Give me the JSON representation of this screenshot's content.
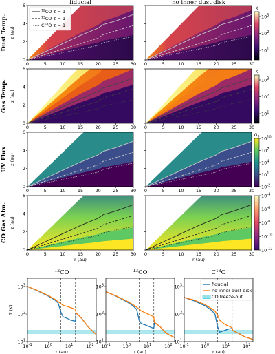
{
  "colors": {
    "fiducial": "#1f77b4",
    "no_inner_dust_disk": "#ff7f0e",
    "freezeout": "#17becf",
    "vline": "#555555"
  },
  "chart_data": [
    {
      "type": "heatmap",
      "grid": "4x2",
      "column_titles": [
        "fiducial",
        "no inner dust disk"
      ],
      "row_titles": [
        "Dust Temp.",
        "Gas Temp.",
        "UV Flux",
        "CO Gas Abu."
      ],
      "colorbar_labels": [
        "K",
        "K",
        "G0",
        ""
      ],
      "colorbar_ticks": [
        [
          "10^1",
          "10^2",
          "10^3"
        ],
        [
          "10^1",
          "10^2",
          "10^3"
        ],
        [
          "10^10",
          "10^7",
          "10^4",
          "10^1",
          "10^-2"
        ],
        [
          "10^-4",
          "10^-6",
          "10^-8",
          "10^-10",
          "10^-12"
        ]
      ],
      "xlabel": "r (au)",
      "ylabel": "z (au)",
      "xlim": [
        0,
        30
      ],
      "ylim": [
        0,
        6
      ],
      "xticks": [
        0,
        5,
        10,
        15,
        20,
        25,
        30
      ],
      "yticks": [
        0,
        2,
        4,
        6
      ],
      "legend": {
        "placement": "top-left",
        "entries": [
          "12CO τ = 1",
          "13CO τ = 1",
          "C18O τ = 1"
        ]
      },
      "tau_surfaces": {
        "r": [
          0,
          5,
          10,
          15,
          20,
          21.5,
          25,
          30
        ],
        "12CO": [
          0,
          0.9,
          1.8,
          2.7,
          3.5,
          3.9,
          4.3,
          5.0
        ],
        "13CO": [
          0,
          0.6,
          1.2,
          1.8,
          2.4,
          2.8,
          3.2,
          3.8
        ],
        "C18O": [
          0,
          0.4,
          0.8,
          1.2,
          1.6,
          1.9,
          2.2,
          2.6
        ]
      }
    },
    {
      "type": "line",
      "panels": [
        "12CO",
        "13CO",
        "C18O"
      ],
      "xlabel": "r (au)",
      "ylabel": "T (K)",
      "xscale": "log",
      "yscale": "log",
      "xlim": [
        0.1,
        200
      ],
      "ylim": [
        10,
        2000
      ],
      "xticks": [
        "10^-1",
        "10^0",
        "10^1",
        "10^2"
      ],
      "yticks": [
        "10^1",
        "10^2",
        "10^3"
      ],
      "legend": {
        "placement": "top-right",
        "entries": [
          "fiducial",
          "no inner dust disk",
          "CO freeze-out"
        ]
      },
      "freezeout_band": [
        20,
        25
      ],
      "vlines": [
        4,
        20
      ],
      "series": [
        {
          "name": "fiducial",
          "panels": {
            "12CO": {
              "x": [
                0.1,
                0.3,
                1,
                2,
                3,
                4,
                5,
                8,
                12,
                20,
                21.5,
                40,
                80,
                200
              ],
              "y": [
                1000,
                700,
                450,
                330,
                250,
                120,
                80,
                70,
                60,
                55,
                110,
                70,
                35,
                18
              ]
            },
            "13CO": {
              "x": [
                0.1,
                0.3,
                1,
                2,
                3,
                4,
                5,
                8,
                12,
                20,
                21.5,
                40,
                80,
                200
              ],
              "y": [
                650,
                450,
                280,
                200,
                150,
                60,
                45,
                40,
                35,
                30,
                50,
                35,
                20,
                14
              ]
            },
            "C18O": {
              "x": [
                0.1,
                0.3,
                1,
                2,
                3,
                4,
                5,
                8,
                12,
                20,
                21.5,
                40,
                80,
                200
              ],
              "y": [
                400,
                300,
                200,
                140,
                100,
                35,
                22,
                25,
                28,
                30,
                25,
                20,
                15,
                12
              ]
            }
          }
        },
        {
          "name": "no inner dust disk",
          "panels": {
            "12CO": {
              "x": [
                0.1,
                0.3,
                1,
                2,
                3,
                4,
                5,
                8,
                12,
                20,
                21.5,
                40,
                80,
                200
              ],
              "y": [
                1000,
                720,
                470,
                350,
                280,
                240,
                210,
                190,
                170,
                150,
                110,
                70,
                35,
                18
              ]
            },
            "13CO": {
              "x": [
                0.1,
                0.3,
                1,
                2,
                3,
                4,
                5,
                8,
                12,
                20,
                21.5,
                40,
                80,
                200
              ],
              "y": [
                650,
                460,
                300,
                220,
                180,
                150,
                130,
                110,
                95,
                80,
                50,
                35,
                20,
                14
              ]
            },
            "C18O": {
              "x": [
                0.1,
                0.3,
                1,
                2,
                3,
                4,
                5,
                8,
                12,
                20,
                21.5,
                40,
                80,
                200
              ],
              "y": [
                400,
                320,
                220,
                160,
                130,
                90,
                60,
                45,
                38,
                32,
                25,
                20,
                15,
                12
              ]
            }
          }
        }
      ]
    }
  ]
}
